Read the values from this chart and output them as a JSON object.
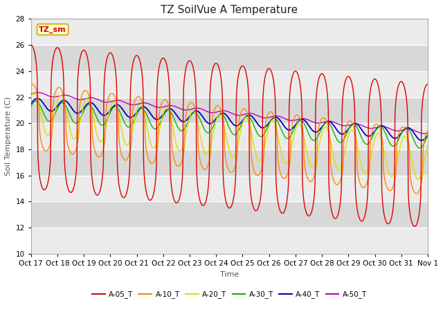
{
  "title": "TZ SoilVue A Temperature",
  "xlabel": "Time",
  "ylabel": "Soil Temperature (C)",
  "ylim": [
    10,
    28
  ],
  "yticks": [
    10,
    12,
    14,
    16,
    18,
    20,
    22,
    24,
    26,
    28
  ],
  "x_labels": [
    "Oct 17",
    "Oct 18",
    "Oct 19",
    "Oct 20",
    "Oct 21",
    "Oct 22",
    "Oct 23",
    "Oct 24",
    "Oct 25",
    "Oct 26",
    "Oct 27",
    "Oct 28",
    "Oct 29",
    "Oct 30",
    "Oct 31",
    "Nov 1"
  ],
  "annotation_text": "TZ_sm",
  "annotation_bg": "#FFFFCC",
  "annotation_border": "#CCAA00",
  "colors": {
    "A-05_T": "#DD0000",
    "A-10_T": "#FF8800",
    "A-20_T": "#DDDD00",
    "A-30_T": "#00BB00",
    "A-40_T": "#0000CC",
    "A-50_T": "#BB00BB"
  },
  "plot_bg_light": "#EBEBEB",
  "plot_bg_dark": "#D8D8D8",
  "grid_color": "#FFFFFF",
  "title_fontsize": 11,
  "label_fontsize": 8,
  "tick_fontsize": 7.5
}
